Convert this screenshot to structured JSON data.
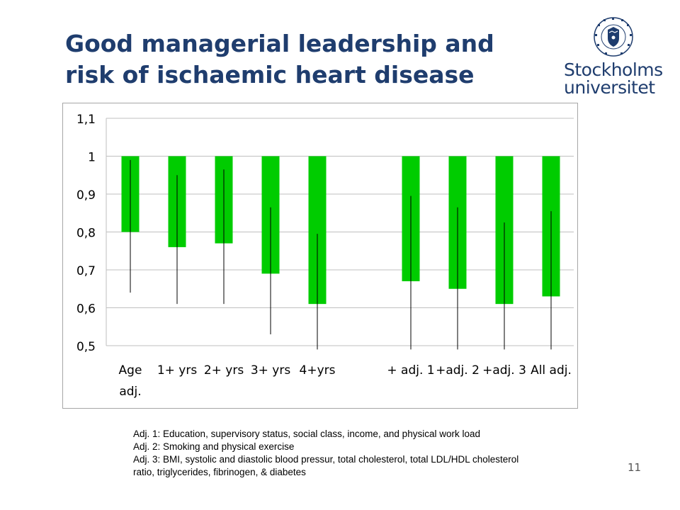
{
  "slide": {
    "title_line1": "Good managerial leadership and",
    "title_line2": "risk of ischaemic heart disease",
    "page_number": "11"
  },
  "logo": {
    "line1": "Stockholms",
    "line2": "universitet",
    "seal_text": "STOCKHOLMS UNIVERSITET"
  },
  "chart_data": {
    "type": "bar",
    "title": "",
    "xlabel": "",
    "ylabel": "",
    "ylim": [
      0.5,
      1.1
    ],
    "baseline": 1,
    "yticks": [
      "0,5",
      "0,6",
      "0,7",
      "0,8",
      "0,9",
      "1",
      "1,1"
    ],
    "ytick_values": [
      0.5,
      0.6,
      0.7,
      0.8,
      0.9,
      1.0,
      1.1
    ],
    "grid": true,
    "legend": "none",
    "bar_color": "#00cc00",
    "categories": [
      "Age adj.",
      "1+ yrs",
      "2+ yrs",
      "3+ yrs",
      "4+yrs",
      "",
      "+ adj. 1",
      "+adj. 2",
      "+adj. 3",
      "All adj."
    ],
    "values": [
      0.8,
      0.76,
      0.77,
      0.69,
      0.61,
      null,
      0.67,
      0.65,
      0.61,
      0.63
    ],
    "ci_low": [
      0.64,
      0.61,
      0.61,
      0.53,
      0.49,
      null,
      0.49,
      0.49,
      0.49,
      0.49
    ],
    "ci_high": [
      0.99,
      0.95,
      0.965,
      0.865,
      0.795,
      null,
      0.895,
      0.865,
      0.825,
      0.855
    ]
  },
  "footnotes": [
    "Adj. 1: Education, supervisory status, social class, income, and physical work load",
    "Adj. 2: Smoking and physical exercise",
    "Adj. 3: BMI, systolic and diastolic blood pressur, total cholesterol, total LDL/HDL cholesterol",
    "ratio, triglycerides, fibrinogen, & diabetes"
  ]
}
